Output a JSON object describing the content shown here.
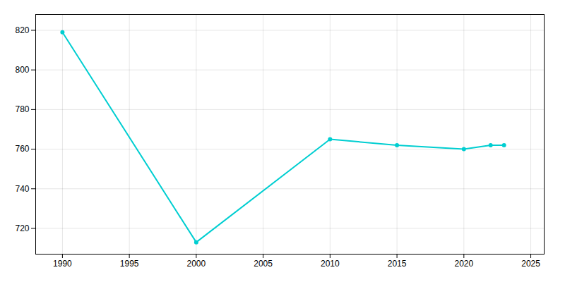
{
  "chart_data": {
    "type": "line",
    "x": [
      1990,
      2000,
      2010,
      2015,
      2020,
      2022,
      2023
    ],
    "values": [
      819,
      713,
      765,
      762,
      760,
      762,
      762
    ],
    "color": "#00CED1",
    "marker": "circle",
    "xlim": [
      1988,
      2026
    ],
    "ylim": [
      707,
      828
    ],
    "xticks": [
      1990,
      1995,
      2000,
      2005,
      2010,
      2015,
      2020,
      2025
    ],
    "yticks": [
      720,
      740,
      760,
      780,
      800,
      820
    ],
    "grid": true
  }
}
